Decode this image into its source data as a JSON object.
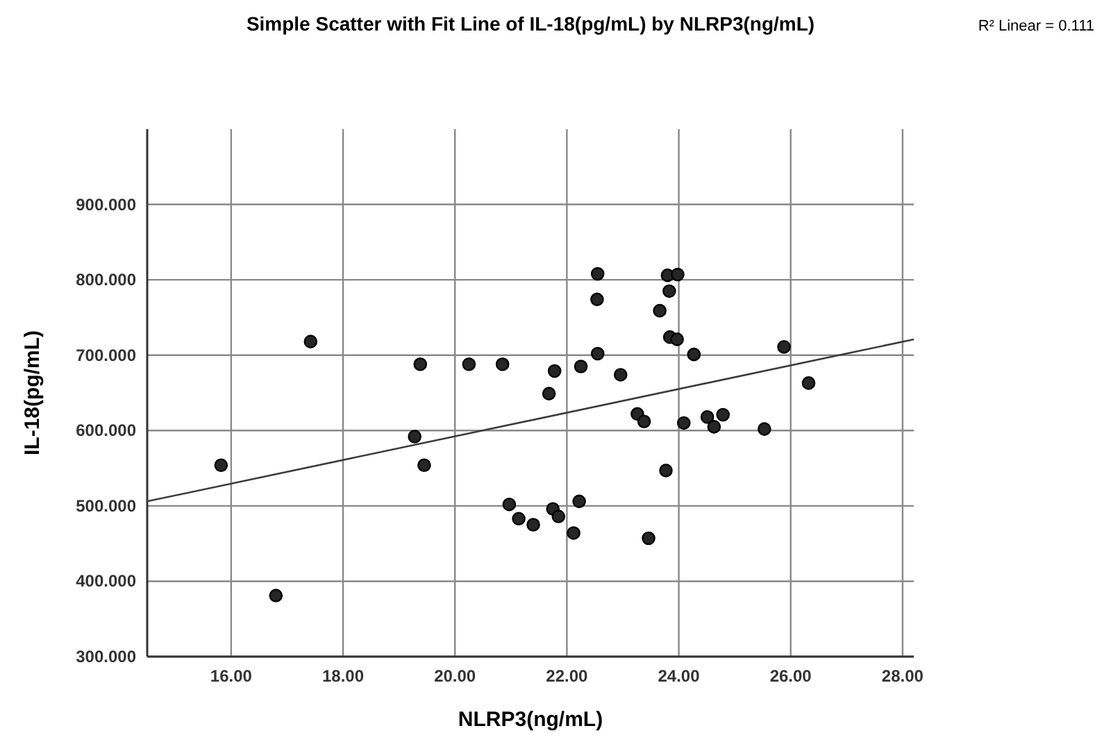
{
  "chart_data": {
    "type": "scatter",
    "title": "Simple Scatter with Fit Line of IL-18(pg/mL) by NLRP3(ng/mL)",
    "xlabel": "NLRP3(ng/mL)",
    "ylabel": "IL-18(pg/mL)",
    "annotations": [
      "R² Linear = 0.111"
    ],
    "xlim": [
      14.5,
      28.2
    ],
    "xticks": [
      {
        "value": 16,
        "label": "16.00"
      },
      {
        "value": 18,
        "label": "18.00"
      },
      {
        "value": 20,
        "label": "20.00"
      },
      {
        "value": 22,
        "label": "22.00"
      },
      {
        "value": 24,
        "label": "24.00"
      },
      {
        "value": 26,
        "label": "26.00"
      },
      {
        "value": 28,
        "label": "28.00"
      }
    ],
    "ylim": [
      300,
      1000
    ],
    "yticks": [
      {
        "value": 300,
        "label": "300.000"
      },
      {
        "value": 400,
        "label": "400.000"
      },
      {
        "value": 500,
        "label": "500.000"
      },
      {
        "value": 600,
        "label": "600.000"
      },
      {
        "value": 700,
        "label": "700.000"
      },
      {
        "value": 800,
        "label": "800.000"
      },
      {
        "value": 900,
        "label": "900.000"
      }
    ],
    "grid": true,
    "marker": "circle",
    "series": [
      {
        "color": "#262626",
        "x": [
          17.42,
          19.38,
          20.25,
          20.85,
          19.28,
          15.82,
          19.45,
          20.97,
          21.14,
          16.8,
          22.55,
          23.8,
          23.98,
          23.83,
          22.54,
          23.66,
          23.84,
          23.97,
          22.55,
          24.27,
          25.88,
          22.25,
          21.78,
          22.96,
          26.32,
          21.68,
          23.26,
          23.38,
          24.09,
          24.51,
          24.79,
          24.63,
          25.53,
          23.77,
          21.4,
          21.75,
          21.85,
          22.22,
          22.12,
          23.46
        ],
        "values": [
          718,
          688,
          688,
          688,
          592,
          554,
          554,
          502,
          483,
          381,
          808,
          806,
          807,
          785,
          774,
          759,
          724,
          721,
          702,
          701,
          711,
          685,
          679,
          674,
          663,
          649,
          622,
          612,
          610,
          618,
          621,
          605,
          602,
          547,
          475,
          496,
          486,
          506,
          464,
          457
        ]
      },
      {
        "type": "line",
        "color": "#3c3c3c",
        "line_style": "solid",
        "marker": "none",
        "x": [
          14.5,
          28.2
        ],
        "values": [
          506,
          721
        ]
      }
    ]
  }
}
